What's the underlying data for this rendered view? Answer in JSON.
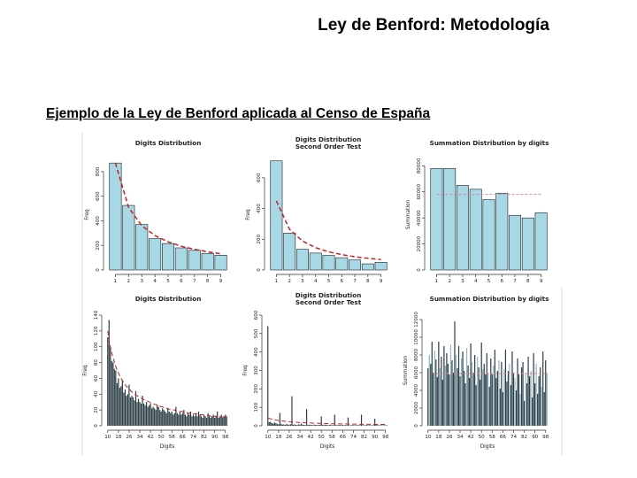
{
  "slide": {
    "title": "Ley de Benford: Metodología",
    "subtitle": "Ejemplo de la Ley de Benford aplicada al Censo de España"
  },
  "colors": {
    "bar": "#a7d8e6",
    "bar_dark": "#2b3f47",
    "expected": "#cc1f1f",
    "axis": "#333333",
    "hline": "#d77f7f"
  },
  "chart_data": [
    {
      "type": "bar",
      "title": "Digits Distribution",
      "xlabel": "",
      "ylabel": "Freq",
      "categories": [
        "1",
        "2",
        "3",
        "4",
        "5",
        "6",
        "7",
        "8",
        "9"
      ],
      "xtick_labels": [
        "1",
        "2",
        "3",
        "4",
        "5",
        "6",
        "7",
        "8",
        "9"
      ],
      "ylim": [
        0,
        900
      ],
      "yticks": [
        0,
        200,
        400,
        600,
        800
      ],
      "series": [
        {
          "values": [
            870,
            525,
            370,
            255,
            215,
            180,
            160,
            135,
            120
          ]
        },
        {
          "values": [
            870,
            508,
            361,
            280,
            229,
            193,
            168,
            148,
            132
          ],
          "style": "dashed"
        }
      ]
    },
    {
      "type": "bar",
      "title": "Digits Distribution\nSecond Order Test",
      "xlabel": "",
      "ylabel": "Freq",
      "categories": [
        "1",
        "2",
        "3",
        "4",
        "5",
        "6",
        "7",
        "8",
        "9"
      ],
      "xtick_labels": [
        "1",
        "2",
        "3",
        "4",
        "5",
        "6",
        "7",
        "8",
        "9"
      ],
      "ylim": [
        0,
        720
      ],
      "yticks": [
        0,
        200,
        400,
        600
      ],
      "series": [
        {
          "values": [
            710,
            240,
            135,
            110,
            95,
            80,
            65,
            40,
            50
          ]
        },
        {
          "values": [
            450,
            265,
            188,
            145,
            118,
            100,
            86,
            76,
            68
          ],
          "style": "dashed"
        }
      ]
    },
    {
      "type": "bar",
      "title": "Summation Distribution by digits",
      "xlabel": "",
      "ylabel": "Summation",
      "categories": [
        "1",
        "2",
        "3",
        "4",
        "5",
        "6",
        "7",
        "8",
        "9"
      ],
      "xtick_labels": [
        "1",
        "2",
        "3",
        "4",
        "5",
        "6",
        "7",
        "8",
        "9"
      ],
      "ylim": [
        0,
        85000
      ],
      "yticks": [
        0,
        20000,
        40000,
        60000,
        80000
      ],
      "series": [
        {
          "values": [
            78000,
            78000,
            65000,
            62000,
            54000,
            59000,
            42000,
            40000,
            44000
          ]
        },
        {
          "values": [
            58000,
            58000,
            58000,
            58000,
            58000,
            58000,
            58000,
            58000,
            58000
          ],
          "style": "dashed"
        }
      ]
    },
    {
      "type": "bar",
      "title": "Digits Distribution",
      "xlabel": "Digits",
      "ylabel": "Freq",
      "x": [
        10,
        11,
        12,
        13,
        14,
        15,
        16,
        17,
        18,
        19,
        20,
        21,
        22,
        23,
        24,
        25,
        26,
        27,
        28,
        29,
        30,
        31,
        32,
        33,
        34,
        35,
        36,
        37,
        38,
        39,
        40,
        41,
        42,
        43,
        44,
        45,
        46,
        47,
        48,
        49,
        50,
        51,
        52,
        53,
        54,
        55,
        56,
        57,
        58,
        59,
        60,
        61,
        62,
        63,
        64,
        65,
        66,
        67,
        68,
        69,
        70,
        71,
        72,
        73,
        74,
        75,
        76,
        77,
        78,
        79,
        80,
        81,
        82,
        83,
        84,
        85,
        86,
        87,
        88,
        89,
        90,
        91,
        92,
        93,
        94,
        95,
        96,
        97,
        98,
        99
      ],
      "xtick_labels": [
        "10",
        "18",
        "26",
        "34",
        "42",
        "50",
        "58",
        "66",
        "74",
        "82",
        "90",
        "98"
      ],
      "ylim": [
        0,
        140
      ],
      "yticks": [
        0,
        20,
        40,
        60,
        80,
        100,
        120,
        140
      ],
      "series": [
        {
          "values": [
            112,
            134,
            100,
            82,
            80,
            72,
            70,
            54,
            60,
            48,
            50,
            58,
            42,
            46,
            38,
            40,
            52,
            36,
            38,
            36,
            32,
            44,
            30,
            34,
            30,
            28,
            38,
            28,
            26,
            30,
            24,
            26,
            28,
            22,
            24,
            22,
            20,
            26,
            24,
            20,
            18,
            22,
            20,
            18,
            16,
            22,
            18,
            16,
            18,
            14,
            16,
            24,
            16,
            14,
            18,
            14,
            16,
            20,
            14,
            12,
            16,
            14,
            18,
            12,
            14,
            12,
            16,
            12,
            18,
            14,
            12,
            10,
            14,
            12,
            10,
            16,
            12,
            10,
            12,
            14,
            10,
            12,
            18,
            10,
            12,
            14,
            10,
            12,
            14,
            12
          ]
        },
        {
          "values": [
            120,
            109,
            100,
            92,
            86,
            80,
            75,
            71,
            67,
            63,
            60,
            57,
            55,
            52,
            50,
            48,
            47,
            45,
            43,
            42,
            41,
            39,
            38,
            37,
            36,
            35,
            34,
            33,
            32,
            32,
            31,
            30,
            29,
            29,
            28,
            27,
            27,
            26,
            25,
            25,
            24,
            24,
            23,
            23,
            22,
            22,
            21,
            21,
            21,
            20,
            20,
            19,
            19,
            19,
            18,
            18,
            18,
            17,
            17,
            17,
            16,
            16,
            16,
            16,
            15,
            15,
            15,
            15,
            14,
            14,
            14,
            14,
            13,
            13,
            13,
            13,
            13,
            12,
            12,
            12,
            12,
            12,
            12,
            11,
            11,
            11,
            11,
            11,
            11,
            10
          ],
          "style": "dashed"
        }
      ]
    },
    {
      "type": "bar",
      "title": "Digits Distribution\nSecond Order Test",
      "xlabel": "Digits",
      "ylabel": "Freq",
      "x": [
        10,
        11,
        12,
        13,
        14,
        15,
        16,
        17,
        18,
        19,
        20,
        21,
        22,
        23,
        24,
        25,
        26,
        27,
        28,
        29,
        30,
        31,
        32,
        33,
        34,
        35,
        36,
        37,
        38,
        39,
        40,
        41,
        42,
        43,
        44,
        45,
        46,
        47,
        48,
        49,
        50,
        51,
        52,
        53,
        54,
        55,
        56,
        57,
        58,
        59,
        60,
        61,
        62,
        63,
        64,
        65,
        66,
        67,
        68,
        69,
        70,
        71,
        72,
        73,
        74,
        75,
        76,
        77,
        78,
        79,
        80,
        81,
        82,
        83,
        84,
        85,
        86,
        87,
        88,
        89,
        90,
        91,
        92,
        93,
        94,
        95,
        96,
        97,
        98,
        99
      ],
      "xtick_labels": [
        "10",
        "18",
        "26",
        "34",
        "42",
        "50",
        "58",
        "66",
        "74",
        "82",
        "90",
        "98"
      ],
      "ylim": [
        0,
        600
      ],
      "yticks": [
        0,
        100,
        200,
        300,
        400,
        500,
        600
      ],
      "series": [
        {
          "values": [
            540,
            20,
            22,
            15,
            12,
            18,
            14,
            10,
            8,
            70,
            10,
            6,
            8,
            5,
            10,
            6,
            6,
            8,
            160,
            6,
            8,
            5,
            4,
            8,
            6,
            12,
            6,
            5,
            4,
            90,
            4,
            6,
            5,
            4,
            3,
            6,
            5,
            4,
            4,
            6,
            50,
            6,
            4,
            6,
            5,
            3,
            4,
            6,
            3,
            3,
            60,
            4,
            3,
            5,
            4,
            3,
            5,
            3,
            4,
            3,
            45,
            3,
            2,
            4,
            3,
            3,
            2,
            4,
            3,
            3,
            60,
            3,
            2,
            3,
            4,
            2,
            3,
            3,
            2,
            3,
            38,
            4,
            3,
            3,
            2,
            3,
            2,
            3,
            2,
            3
          ]
        },
        {
          "values": [
            42,
            40,
            38,
            36,
            34,
            33,
            31,
            30,
            29,
            28,
            27,
            26,
            25,
            24,
            23,
            23,
            22,
            21,
            21,
            20,
            20,
            19,
            19,
            18,
            18,
            17,
            17,
            17,
            16,
            16,
            16,
            15,
            15,
            15,
            14,
            14,
            14,
            14,
            13,
            13,
            13,
            13,
            12,
            12,
            12,
            12,
            12,
            11,
            11,
            11,
            11,
            11,
            11,
            10,
            10,
            10,
            10,
            10,
            10,
            10,
            9,
            9,
            9,
            9,
            9,
            9,
            9,
            9,
            8,
            8,
            8,
            8,
            8,
            8,
            8,
            8,
            8,
            8,
            8,
            7,
            7,
            7,
            7,
            7,
            7,
            7,
            7,
            7,
            7,
            7
          ],
          "style": "dashed"
        }
      ]
    },
    {
      "type": "bar",
      "title": "Summation Distribution by digits",
      "xlabel": "Digits",
      "ylabel": "Summation",
      "x": [
        10,
        11,
        12,
        13,
        14,
        15,
        16,
        17,
        18,
        19,
        20,
        21,
        22,
        23,
        24,
        25,
        26,
        27,
        28,
        29,
        30,
        31,
        32,
        33,
        34,
        35,
        36,
        37,
        38,
        39,
        40,
        41,
        42,
        43,
        44,
        45,
        46,
        47,
        48,
        49,
        50,
        51,
        52,
        53,
        54,
        55,
        56,
        57,
        58,
        59,
        60,
        61,
        62,
        63,
        64,
        65,
        66,
        67,
        68,
        69,
        70,
        71,
        72,
        73,
        74,
        75,
        76,
        77,
        78,
        79,
        80,
        81,
        82,
        83,
        84,
        85,
        86,
        87,
        88,
        89,
        90,
        91,
        92,
        93,
        94,
        95,
        96,
        97,
        98,
        99
      ],
      "xtick_labels": [
        "10",
        "18",
        "26",
        "34",
        "42",
        "50",
        "58",
        "66",
        "74",
        "82",
        "90",
        "98"
      ],
      "ylim": [
        0,
        12500
      ],
      "yticks": [
        0,
        2000,
        4000,
        6000,
        8000,
        10000,
        12000
      ],
      "series": [
        {
          "values": [
            6500,
            8000,
            7000,
            9500,
            6000,
            8500,
            7500,
            5500,
            9500,
            6500,
            7800,
            5200,
            9000,
            6800,
            8200,
            7000,
            5800,
            9200,
            7400,
            6000,
            11800,
            8000,
            6500,
            9000,
            5600,
            7600,
            8400,
            6200,
            4800,
            8800,
            6800,
            5400,
            9300,
            7200,
            6000,
            8000,
            4600,
            7800,
            6600,
            5200,
            9400,
            6400,
            7000,
            5800,
            8200,
            6000,
            4400,
            7600,
            5800,
            6800,
            8600,
            5400,
            6200,
            7400,
            4200,
            7200,
            3800,
            6400,
            8600,
            5000,
            6200,
            7000,
            4600,
            8400,
            6000,
            5400,
            4000,
            7600,
            5800,
            3600,
            6600,
            7200,
            2800,
            6000,
            4800,
            7800,
            5600,
            6200,
            3200,
            8200,
            4800,
            7000,
            3600,
            5600,
            6600,
            4400,
            8400,
            3800,
            7400,
            6000
          ]
        },
        {
          "values": [
            5900,
            5900,
            5900,
            5900,
            5900,
            5900,
            5900,
            5900,
            5900,
            5900,
            5900,
            5900,
            5900,
            5900,
            5900,
            5900,
            5900,
            5900,
            5900,
            5900,
            5900,
            5900,
            5900,
            5900,
            5900,
            5900,
            5900,
            5900,
            5900,
            5900,
            5900,
            5900,
            5900,
            5900,
            5900,
            5900,
            5900,
            5900,
            5900,
            5900,
            5900,
            5900,
            5900,
            5900,
            5900,
            5900,
            5900,
            5900,
            5900,
            5900,
            5900,
            5900,
            5900,
            5900,
            5900,
            5900,
            5900,
            5900,
            5900,
            5900,
            5900,
            5900,
            5900,
            5900,
            5900,
            5900,
            5900,
            5900,
            5900,
            5900,
            5900,
            5900,
            5900,
            5900,
            5900,
            5900,
            5900,
            5900,
            5900,
            5900,
            5900,
            5900,
            5900,
            5900,
            5900,
            5900,
            5900,
            5900,
            5900,
            5900
          ],
          "style": "dashed"
        }
      ]
    }
  ]
}
